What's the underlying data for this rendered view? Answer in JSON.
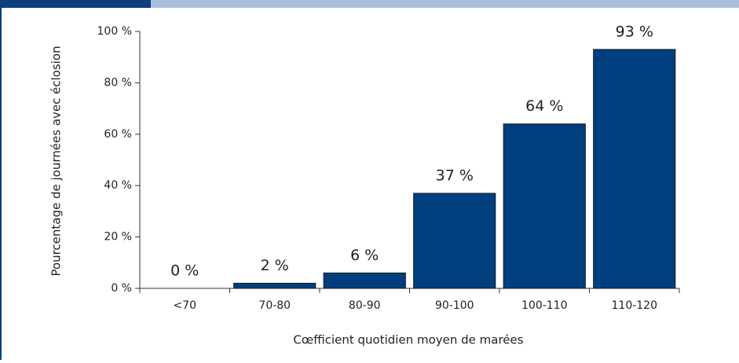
{
  "chart_data": {
    "type": "bar",
    "xlabel": "Cœfficient quotidien moyen de marées",
    "ylabel": "Pourcentage de journées avec éclosion",
    "categories": [
      "<70",
      "70-80",
      "80-90",
      "90-100",
      "100-110",
      "110-120"
    ],
    "values": [
      0,
      2,
      6,
      37,
      64,
      93
    ],
    "value_labels": [
      "0 %",
      "2 %",
      "6 %",
      "37 %",
      "64 %",
      "93 %"
    ],
    "color": "#003f7d",
    "ylim": [
      0,
      100
    ],
    "yticks": [
      {
        "value": 0,
        "label": "0 %"
      },
      {
        "value": 20,
        "label": "20 %"
      },
      {
        "value": 40,
        "label": "40 %"
      },
      {
        "value": 60,
        "label": "60 %"
      },
      {
        "value": 80,
        "label": "80 %"
      },
      {
        "value": 100,
        "label": "100 %"
      }
    ],
    "grid": false
  }
}
